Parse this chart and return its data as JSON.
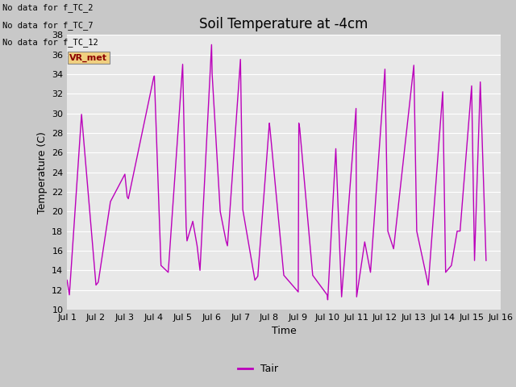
{
  "title": "Soil Temperature at -4cm",
  "xlabel": "Time",
  "ylabel": "Temperature (C)",
  "ylim": [
    10,
    38
  ],
  "yticks": [
    10,
    12,
    14,
    16,
    18,
    20,
    22,
    24,
    26,
    28,
    30,
    32,
    34,
    36,
    38
  ],
  "xtick_labels": [
    "Jul 1",
    "Jul 2",
    "Jul 3",
    "Jul 4",
    "Jul 5",
    "Jul 6",
    "Jul 7",
    "Jul 8",
    "Jul 9",
    "Jul 10",
    "Jul 11",
    "Jul 12",
    "Jul 13",
    "Jul 14",
    "Jul 15",
    "Jul 16"
  ],
  "line_color": "#BB00BB",
  "line_label": "Tair",
  "fig_bg_color": "#C8C8C8",
  "plot_bg_color": "#E8E8E8",
  "no_data_lines": [
    "No data for f_TC_2",
    "No data for f_TC_7",
    "No data for f_TC_12"
  ],
  "y_values": [
    13.0,
    11.5,
    29.9,
    12.5,
    12.8,
    21.0,
    23.8,
    21.5,
    21.3,
    33.7,
    33.8,
    14.5,
    13.8,
    35.0,
    18.5,
    17.0,
    19.0,
    16.5,
    14.0,
    37.0,
    34.0,
    20.0,
    17.0,
    16.5,
    35.5,
    20.2,
    13.0,
    13.4,
    29.0,
    28.5,
    13.5,
    11.8,
    29.0,
    28.5,
    13.5,
    11.5,
    11.0,
    26.4,
    11.3,
    30.5,
    11.3,
    16.9,
    13.8,
    34.5,
    18.0,
    16.2,
    34.9,
    18.0,
    12.5,
    32.2,
    13.8,
    14.5,
    18.0,
    18.0,
    32.8,
    15.0,
    33.2,
    15.0
  ],
  "x_values": [
    1.0,
    1.08,
    1.5,
    2.0,
    2.08,
    2.5,
    3.0,
    3.08,
    3.12,
    4.0,
    4.02,
    4.25,
    4.5,
    5.0,
    5.12,
    5.15,
    5.35,
    5.5,
    5.6,
    6.0,
    6.02,
    6.3,
    6.5,
    6.55,
    7.0,
    7.08,
    7.5,
    7.6,
    8.0,
    8.02,
    8.5,
    9.0,
    9.02,
    9.05,
    9.5,
    10.0,
    10.02,
    10.3,
    10.5,
    11.0,
    11.02,
    11.3,
    11.5,
    12.0,
    12.1,
    12.3,
    13.0,
    13.1,
    13.5,
    14.0,
    14.1,
    14.3,
    14.5,
    14.6,
    15.0,
    15.1,
    15.3,
    15.5
  ],
  "grid_color": "white",
  "title_fontsize": 12,
  "label_fontsize": 9,
  "tick_fontsize": 8
}
